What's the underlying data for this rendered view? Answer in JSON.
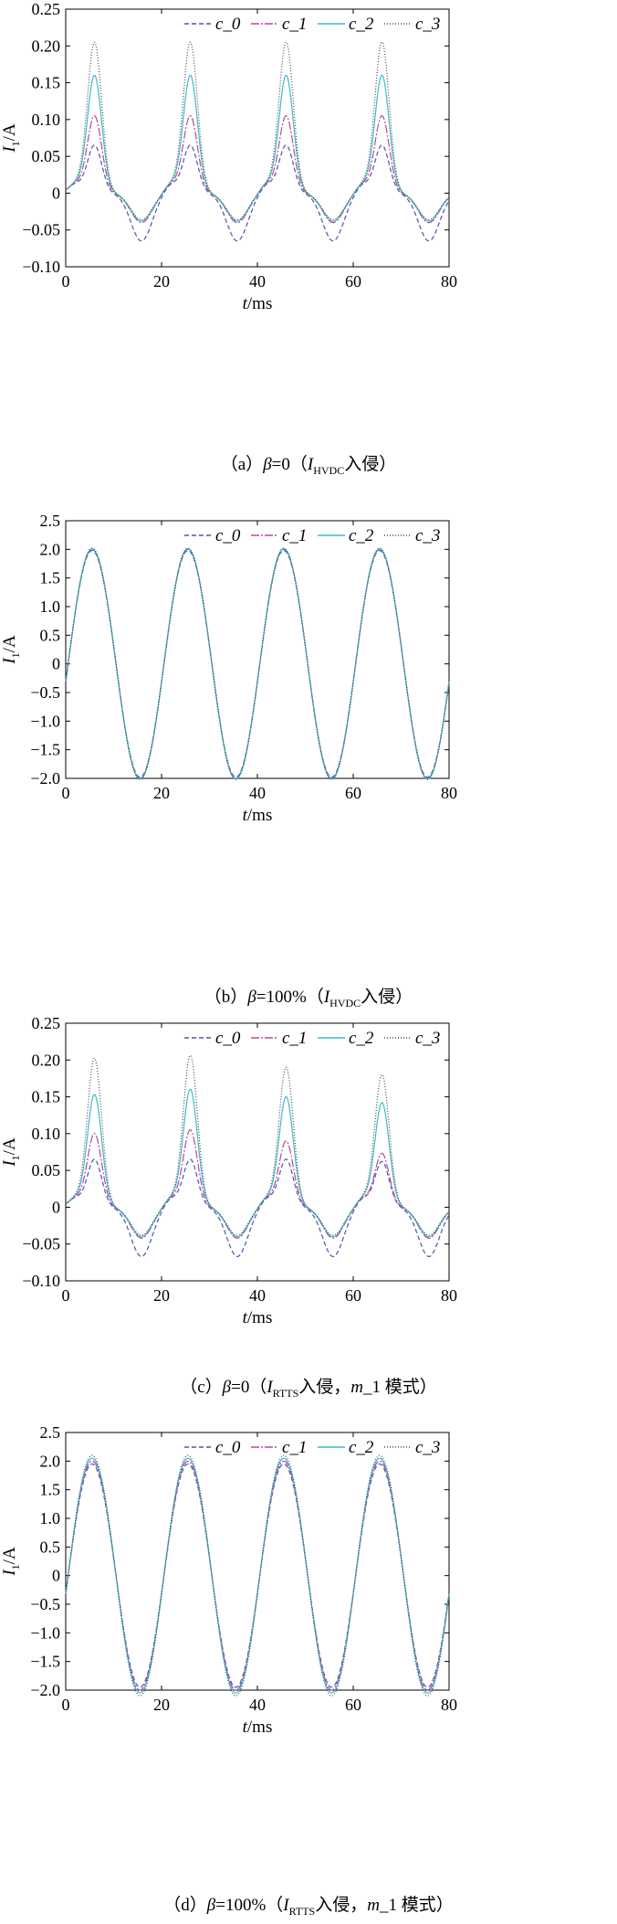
{
  "chart_data": [
    {
      "type": "line",
      "caption": {
        "open": "（a）",
        "beta": "β",
        "rest": "=0（",
        "I": "I",
        "sub": "HVDC",
        "tail": "入侵）"
      },
      "xlabel": {
        "var": "t",
        "unit": "/ms"
      },
      "ylabel": {
        "var": "I",
        "sub": "1",
        "unit": "/A"
      },
      "xlim": [
        0,
        80
      ],
      "ylim": [
        -0.1,
        0.25
      ],
      "xticks": [
        "0",
        "20",
        "40",
        "60",
        "80"
      ],
      "yticks": [
        "−0.10",
        "−0.05",
        "0",
        "0.05",
        "0.10",
        "0.15",
        "0.20",
        "0.25"
      ],
      "legend": {
        "position": "top-right"
      },
      "series": [
        {
          "name": "c_0",
          "peaks": [
            0.065,
            0.065,
            0.065,
            0.065
          ],
          "trough": -0.065
        },
        {
          "name": "c_1",
          "peaks": [
            0.105,
            0.105,
            0.105,
            0.105
          ],
          "trough": -0.04
        },
        {
          "name": "c_2",
          "peaks": [
            0.16,
            0.16,
            0.16,
            0.16
          ],
          "trough": -0.038
        },
        {
          "name": "c_3",
          "peaks": [
            0.205,
            0.205,
            0.205,
            0.205
          ],
          "trough": -0.036
        }
      ]
    },
    {
      "type": "line",
      "caption": {
        "open": "（b）",
        "beta": "β",
        "rest": "=100%（",
        "I": "I",
        "sub": "HVDC",
        "tail": "入侵）"
      },
      "xlabel": {
        "var": "t",
        "unit": "/ms"
      },
      "ylabel": {
        "var": "I",
        "sub": "1",
        "unit": "/A"
      },
      "xlim": [
        0,
        80
      ],
      "ylim": [
        -2.0,
        2.5
      ],
      "xticks": [
        "0",
        "20",
        "40",
        "60",
        "80"
      ],
      "yticks": [
        "−2.0",
        "−1.5",
        "−1.0",
        "−0.5",
        "0",
        "0.5",
        "1.0",
        "1.5",
        "2.0",
        "2.5"
      ],
      "legend": {
        "position": "top-right"
      },
      "series": [
        {
          "name": "c_0",
          "amplitude": 1.98
        },
        {
          "name": "c_1",
          "amplitude": 2.0
        },
        {
          "name": "c_2",
          "amplitude": 2.01
        },
        {
          "name": "c_3",
          "amplitude": 2.02
        }
      ]
    },
    {
      "type": "line",
      "caption": {
        "open": "（c）",
        "beta": "β",
        "rest": "=0（",
        "I": "I",
        "sub": "RTTS",
        "tail": "入侵，",
        "m": "m",
        "mode": "_1 模式）"
      },
      "xlabel": {
        "var": "t",
        "unit": "/ms"
      },
      "ylabel": {
        "var": "I",
        "sub": "1",
        "unit": "/A"
      },
      "xlim": [
        0,
        80
      ],
      "ylim": [
        -0.1,
        0.25
      ],
      "xticks": [
        "0",
        "20",
        "40",
        "60",
        "80"
      ],
      "yticks": [
        "−0.10",
        "−0.05",
        "0",
        "0.05",
        "0.10",
        "0.15",
        "0.20",
        "0.25"
      ],
      "legend": {
        "position": "top-right"
      },
      "series": [
        {
          "name": "c_0",
          "peaks": [
            0.065,
            0.065,
            0.065,
            0.062
          ],
          "trough": -0.067
        },
        {
          "name": "c_1",
          "peaks": [
            0.1,
            0.105,
            0.09,
            0.073
          ],
          "trough": -0.042
        },
        {
          "name": "c_2",
          "peaks": [
            0.153,
            0.16,
            0.15,
            0.142
          ],
          "trough": -0.04
        },
        {
          "name": "c_3",
          "peaks": [
            0.202,
            0.206,
            0.19,
            0.18
          ],
          "trough": -0.038
        }
      ]
    },
    {
      "type": "line",
      "caption": {
        "open": "（d）",
        "beta": "β",
        "rest": "=100%（",
        "I": "I",
        "sub": "RTTS",
        "tail": "入侵，",
        "m": "m",
        "mode": "_1 模式）"
      },
      "xlabel": {
        "var": "t",
        "unit": "/ms"
      },
      "ylabel": {
        "var": "I",
        "sub": "1",
        "unit": "/A"
      },
      "xlim": [
        0,
        80
      ],
      "ylim": [
        -2.0,
        2.5
      ],
      "xticks": [
        "0",
        "20",
        "40",
        "60",
        "80"
      ],
      "yticks": [
        "−2.0",
        "−1.5",
        "−1.0",
        "−0.5",
        "0",
        "0.5",
        "1.0",
        "1.5",
        "2.0",
        "2.5"
      ],
      "legend": {
        "position": "top-right"
      },
      "series": [
        {
          "name": "c_0",
          "amplitude": 1.95
        },
        {
          "name": "c_1",
          "amplitude": 2.0
        },
        {
          "name": "c_2",
          "amplitude": 2.05
        },
        {
          "name": "c_3",
          "amplitude": 2.1
        }
      ]
    }
  ],
  "series_style": [
    {
      "color": "#4a55b0",
      "dash": "5,3"
    },
    {
      "color": "#c0449a",
      "dash": "9,2,2,2"
    },
    {
      "color": "#3bbcc8",
      "dash": ""
    },
    {
      "color": "#4a4a4a",
      "dash": "1,2"
    }
  ]
}
